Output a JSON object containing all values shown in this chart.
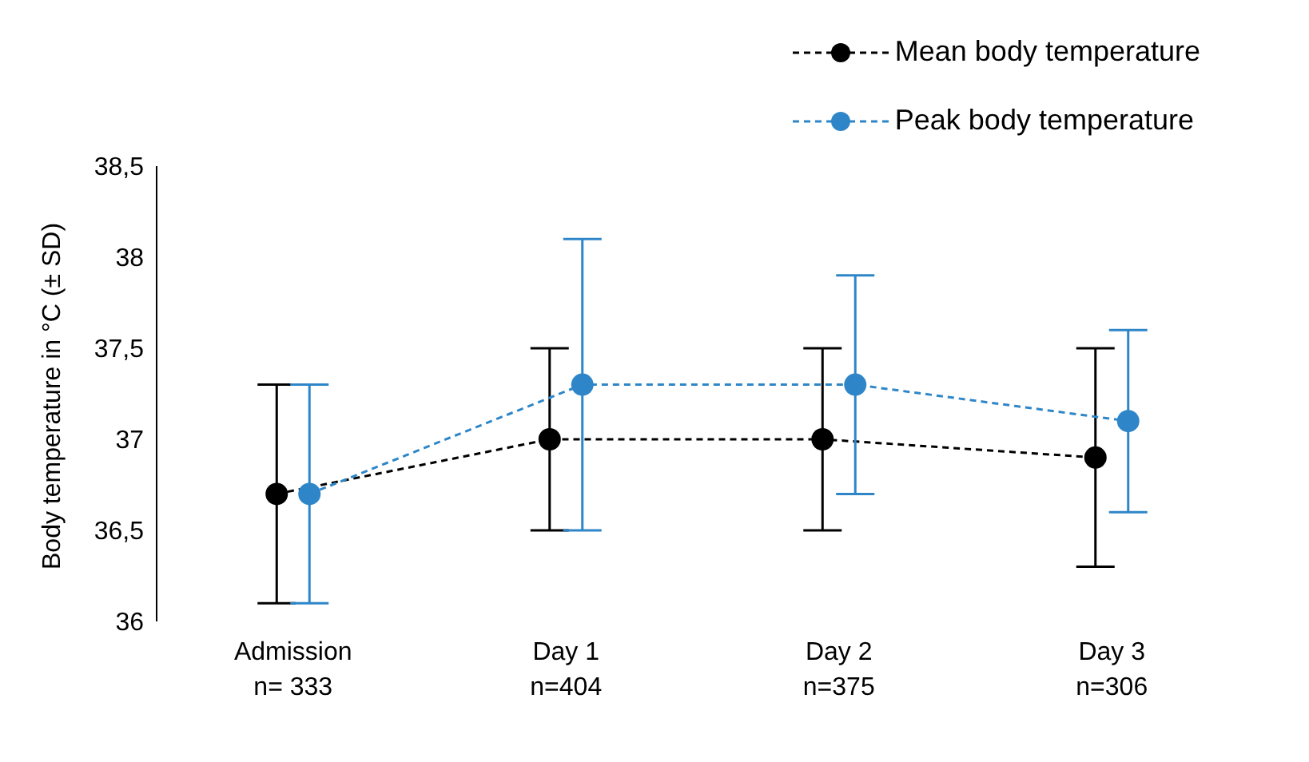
{
  "chart_data": {
    "type": "line",
    "ylabel": "Body temperature in °C  (± SD)",
    "categories": [
      "Admission\nn= 333",
      "Day 1\nn=404",
      "Day 2\nn=375",
      "Day 3\nn=306"
    ],
    "series": [
      {
        "name": "Mean body temperature",
        "color": "#000000",
        "values": [
          36.7,
          37.0,
          37.0,
          36.9
        ],
        "errors": [
          0.6,
          0.5,
          0.5,
          0.6
        ]
      },
      {
        "name": "Peak body temperature",
        "color": "#2e86c8",
        "values": [
          36.7,
          37.3,
          37.3,
          37.1
        ],
        "errors": [
          0.6,
          0.8,
          0.6,
          0.5
        ]
      }
    ],
    "ylim": [
      36,
      38.5
    ],
    "yticks": [
      36,
      {
        "value": 36.5,
        "label": "36,5"
      },
      37,
      {
        "value": 37.5,
        "label": "37,5"
      },
      38,
      {
        "value": 38.5,
        "label": "38,5"
      }
    ],
    "grid": false,
    "legend": "top right",
    "marker": "circle",
    "line_style": "dashed"
  }
}
